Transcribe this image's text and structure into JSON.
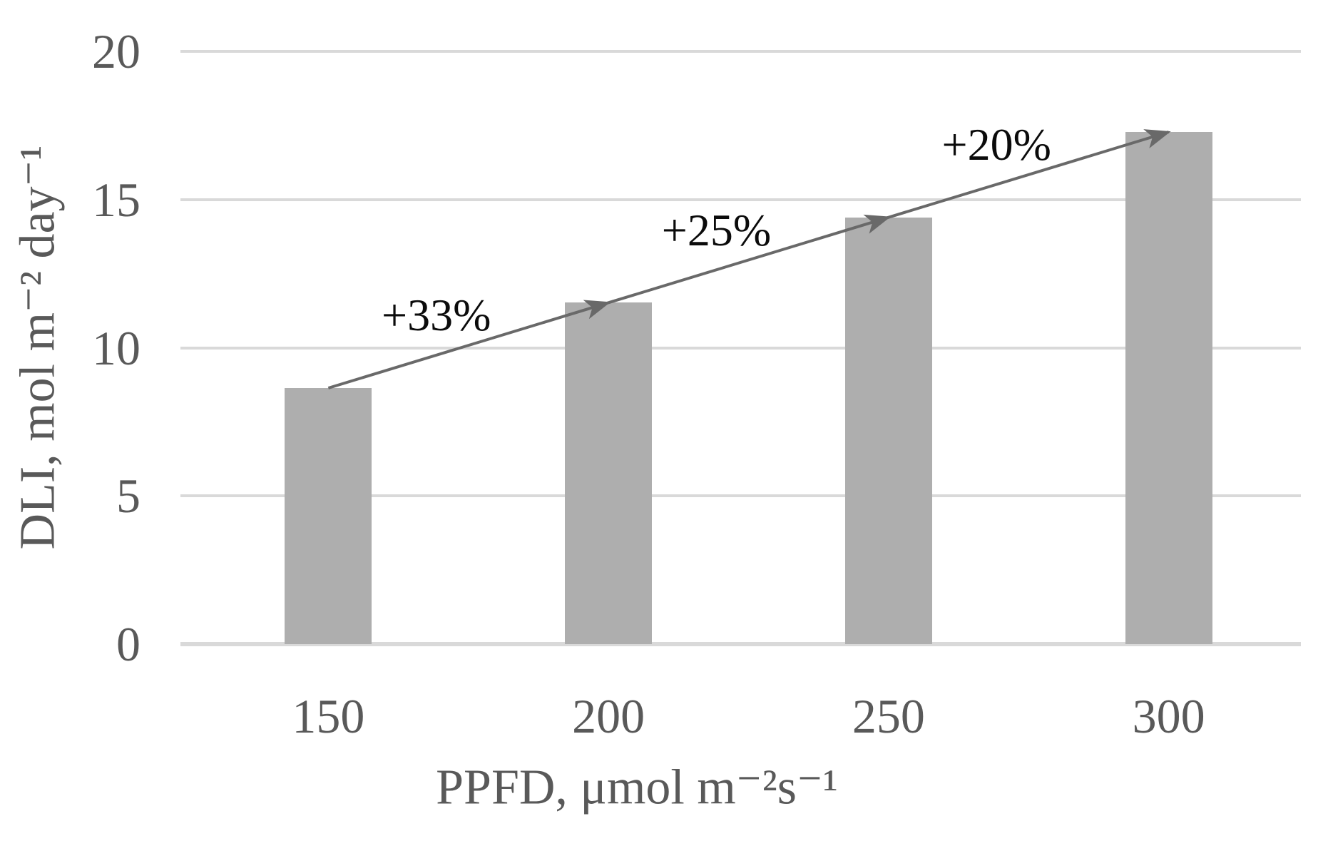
{
  "chart_data": {
    "type": "bar",
    "categories": [
      "150",
      "200",
      "250",
      "300"
    ],
    "values": [
      8.64,
      11.52,
      14.4,
      17.28
    ],
    "title": "",
    "xlabel": "PPFD, μmol m⁻²s⁻¹",
    "ylabel": "DLI, mol m⁻² day⁻¹",
    "ylim": [
      0,
      20
    ],
    "yticks": [
      0,
      5,
      10,
      15,
      20
    ],
    "grid": "horizontal",
    "legend": "none",
    "bar_color": "#aeaeae",
    "gridline_color": "#d9d9d9",
    "arrow_color": "#696969",
    "tick_label_color": "#595959",
    "annotation_color": "#0b0b0b",
    "trend_arrow_through_bar_tops": true,
    "annotations": [
      {
        "label": "+33%",
        "from_bar": 0,
        "to_bar": 1
      },
      {
        "label": "+25%",
        "from_bar": 1,
        "to_bar": 2
      },
      {
        "label": "+20%",
        "from_bar": 2,
        "to_bar": 3
      }
    ]
  }
}
